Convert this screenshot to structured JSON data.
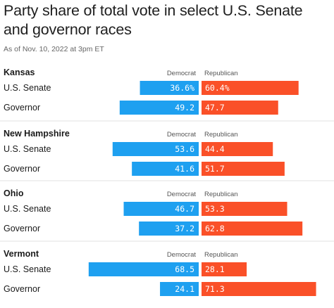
{
  "chart_data": {
    "type": "bar",
    "title": "Party share of total vote in select U.S. Senate and governor races",
    "subtitle": "As of Nov. 10, 2022 at 3pm ET",
    "legend": {
      "democrat": "Democrat",
      "republican": "Republican"
    },
    "colors": {
      "democrat": "#1ea0f0",
      "republican": "#fa5028"
    },
    "groups": [
      {
        "state": "Kansas",
        "races": [
          {
            "race": "U.S. Senate",
            "democrat": 36.6,
            "democrat_label": "36.6%",
            "republican": 60.4,
            "republican_label": "60.4%"
          },
          {
            "race": "Governor",
            "democrat": 49.2,
            "democrat_label": "49.2",
            "republican": 47.7,
            "republican_label": "47.7"
          }
        ]
      },
      {
        "state": "New Hampshire",
        "races": [
          {
            "race": "U.S. Senate",
            "democrat": 53.6,
            "democrat_label": "53.6",
            "republican": 44.4,
            "republican_label": "44.4"
          },
          {
            "race": "Governor",
            "democrat": 41.6,
            "democrat_label": "41.6",
            "republican": 51.7,
            "republican_label": "51.7"
          }
        ]
      },
      {
        "state": "Ohio",
        "races": [
          {
            "race": "U.S. Senate",
            "democrat": 46.7,
            "democrat_label": "46.7",
            "republican": 53.3,
            "republican_label": "53.3"
          },
          {
            "race": "Governor",
            "democrat": 37.2,
            "democrat_label": "37.2",
            "republican": 62.8,
            "republican_label": "62.8"
          }
        ]
      },
      {
        "state": "Vermont",
        "races": [
          {
            "race": "U.S. Senate",
            "democrat": 68.5,
            "democrat_label": "68.5",
            "republican": 28.1,
            "republican_label": "28.1"
          },
          {
            "race": "Governor",
            "democrat": 24.1,
            "democrat_label": "24.1",
            "republican": 71.3,
            "republican_label": "71.3"
          }
        ]
      }
    ]
  }
}
